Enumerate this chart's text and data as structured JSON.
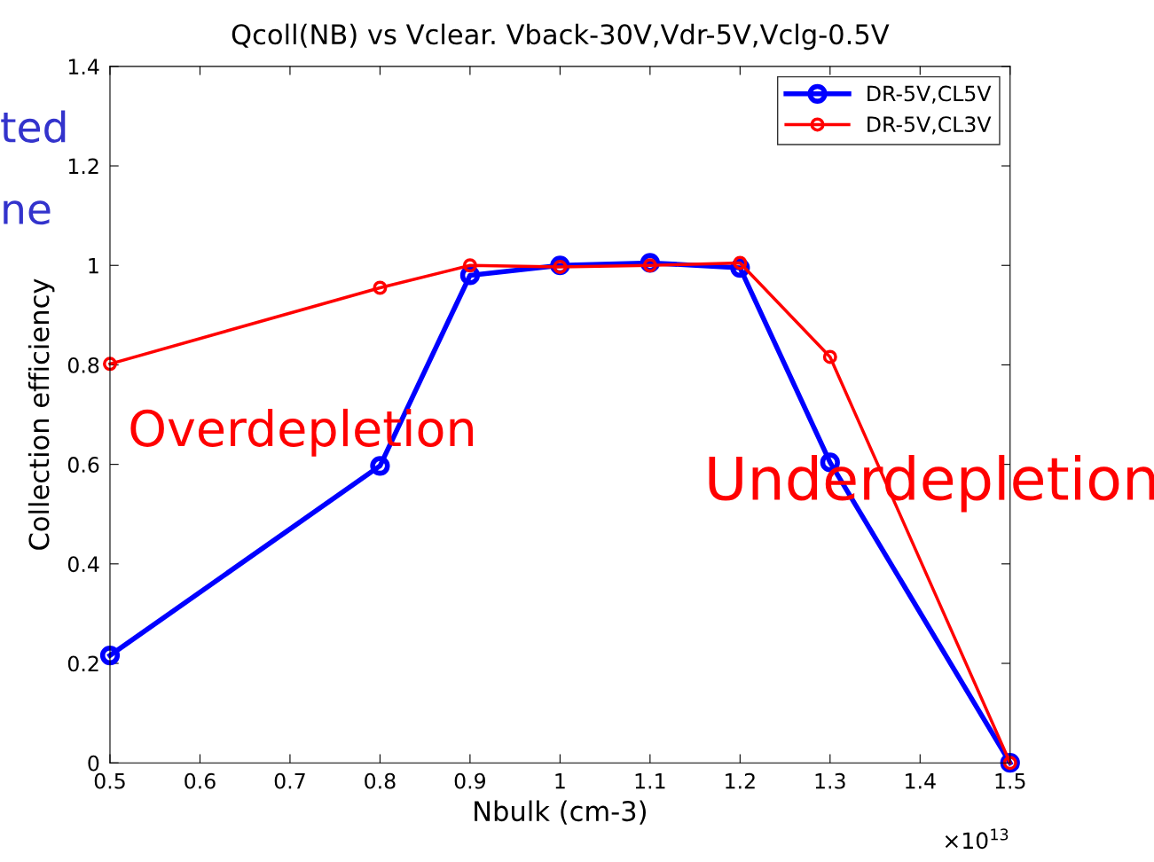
{
  "chart_data": {
    "type": "line",
    "title": "Qcoll(NB) vs Vclear. Vback-30V,Vdr-5V,Vclg-0.5V",
    "xlabel": "Nbulk (cm-3)",
    "ylabel": "Collection efficiency",
    "x": [
      0.5,
      0.8,
      0.9,
      1.0,
      1.1,
      1.2,
      1.3,
      1.5
    ],
    "series": [
      {
        "name": "DR-5V,CL5V",
        "color": "#0000ff",
        "values": [
          0.216,
          0.597,
          0.98,
          1.0,
          1.005,
          0.995,
          0.604,
          0.0
        ]
      },
      {
        "name": "DR-5V,CL3V",
        "color": "#ff0000",
        "values": [
          0.802,
          0.955,
          1.0,
          0.997,
          1.0,
          1.005,
          0.816,
          0.0
        ]
      }
    ],
    "xlim": [
      0.5,
      1.5
    ],
    "xticks": [
      0.5,
      0.6,
      0.7,
      0.8,
      0.9,
      1,
      1.1,
      1.2,
      1.3,
      1.4,
      1.5
    ],
    "ylim": [
      0,
      1.4
    ],
    "yticks": [
      0,
      0.2,
      0.4,
      0.6,
      0.8,
      1,
      1.2,
      1.4
    ],
    "grid": false,
    "legend": "top right",
    "marker": "circle",
    "line_style": "solid",
    "annotations": [
      "×10$^{13}$",
      "Overdepletion",
      "Underdepletion",
      "ted",
      "ne"
    ]
  }
}
